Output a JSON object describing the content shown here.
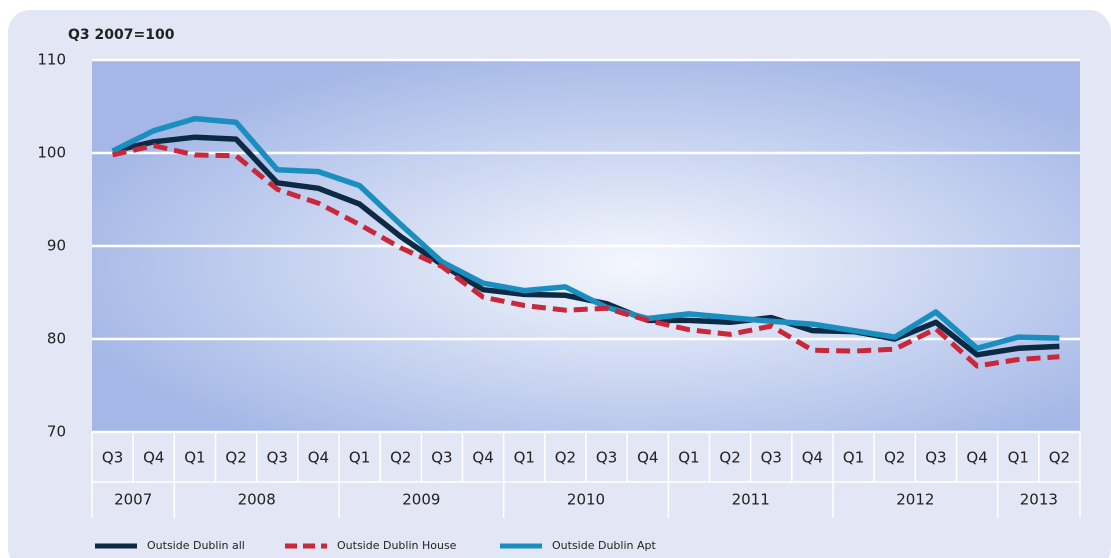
{
  "chart_data": {
    "type": "line",
    "title": "Q3 2007=100",
    "categories": [
      "Q3",
      "Q4",
      "Q1",
      "Q2",
      "Q3",
      "Q4",
      "Q1",
      "Q2",
      "Q3",
      "Q4",
      "Q1",
      "Q2",
      "Q3",
      "Q4",
      "Q1",
      "Q2",
      "Q3",
      "Q4",
      "Q1",
      "Q2",
      "Q3",
      "Q4",
      "Q1",
      "Q2"
    ],
    "years": [
      "2007",
      null,
      "2008",
      null,
      null,
      null,
      "2009",
      null,
      null,
      null,
      "2010",
      null,
      null,
      null,
      "2011",
      null,
      null,
      null,
      "2012",
      null,
      null,
      null,
      "2013",
      null
    ],
    "series": [
      {
        "name": "Outside Dublin all",
        "color": "#0d2a45",
        "dash": false,
        "values": [
          100.2,
          101.2,
          101.7,
          101.5,
          96.8,
          96.2,
          94.5,
          91,
          88,
          85.3,
          84.8,
          84.7,
          83.8,
          82,
          82,
          81.8,
          82.3,
          80.9,
          80.8,
          80,
          81.8,
          78.3,
          79,
          79.2
        ]
      },
      {
        "name": "Outside Dublin House",
        "color": "#c8283a",
        "dash": true,
        "values": [
          99.8,
          100.8,
          99.8,
          99.7,
          96.1,
          94.6,
          92.3,
          89.8,
          87.8,
          84.5,
          83.6,
          83.1,
          83.3,
          82,
          81,
          80.5,
          81.4,
          78.8,
          78.7,
          78.9,
          81.1,
          77.1,
          77.8,
          78.1
        ]
      },
      {
        "name": "Outside Dublin Apt",
        "color": "#1a8fbf",
        "dash": false,
        "values": [
          100.2,
          102.4,
          103.7,
          103.3,
          98.2,
          98,
          96.5,
          92.3,
          88.3,
          86,
          85.2,
          85.6,
          83.4,
          82.2,
          82.7,
          82.3,
          81.9,
          81.6,
          80.9,
          80.2,
          82.9,
          79,
          80.2,
          80.1
        ]
      }
    ],
    "ylim": [
      70,
      110
    ],
    "yticks": [
      70,
      80,
      90,
      100,
      110
    ],
    "grid": true,
    "legend": "bottom"
  }
}
